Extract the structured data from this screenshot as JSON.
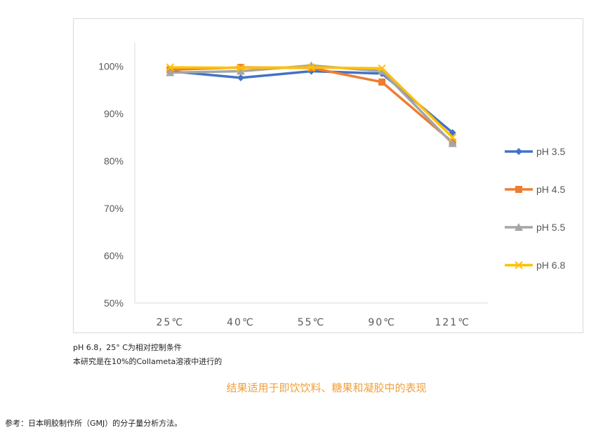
{
  "chart_data": {
    "type": "line",
    "title": "",
    "xlabel": "",
    "ylabel": "",
    "categories": [
      "25℃",
      "40℃",
      "55℃",
      "90℃",
      "121℃"
    ],
    "yticks": [
      "50%",
      "60%",
      "70%",
      "80%",
      "90%",
      "100%"
    ],
    "ylim": [
      0.5,
      1.05
    ],
    "grid": false,
    "legend_position": "right",
    "series": [
      {
        "name": "pH 3.5",
        "values": [
          0.99,
          0.976,
          0.99,
          0.985,
          0.86
        ],
        "color": "#4472c4",
        "marker": "diamond"
      },
      {
        "name": "pH 4.5",
        "values": [
          0.993,
          0.998,
          0.997,
          0.967,
          0.84
        ],
        "color": "#ed7d31",
        "marker": "square"
      },
      {
        "name": "pH 5.5",
        "values": [
          0.987,
          0.99,
          1.002,
          0.99,
          0.837
        ],
        "color": "#a5a5a5",
        "marker": "triangle"
      },
      {
        "name": "pH 6.8",
        "values": [
          0.998,
          0.997,
          0.998,
          0.996,
          0.85
        ],
        "color": "#ffc000",
        "marker": "x"
      }
    ]
  },
  "notes": {
    "line1": "pH 6.8，25° C为相对控制条件",
    "line2": "本研究是在10%的Collameta溶液中进行的"
  },
  "caption": "结果适用于即饮饮料、糖果和凝胶中的表现",
  "reference": "参考：日本明胶制作所（GMJ）的分子量分析方法。"
}
